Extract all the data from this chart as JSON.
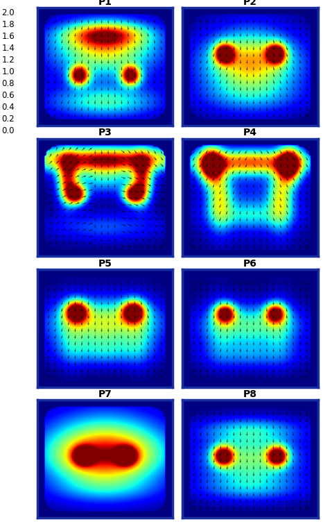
{
  "panels": [
    "P1",
    "P2",
    "P3",
    "P4",
    "P5",
    "P6",
    "P7",
    "P8"
  ],
  "colorbar_ticks": [
    0.0,
    0.2,
    0.4,
    0.6,
    0.8,
    1.0,
    1.2,
    1.4,
    1.6,
    1.8,
    2.0
  ],
  "title_fontsize": 10,
  "tick_fontsize": 8.5,
  "figsize": [
    4.66,
    7.52
  ],
  "dpi": 100,
  "bg_color": "#ffffff",
  "border_color": "#1a2f9e"
}
